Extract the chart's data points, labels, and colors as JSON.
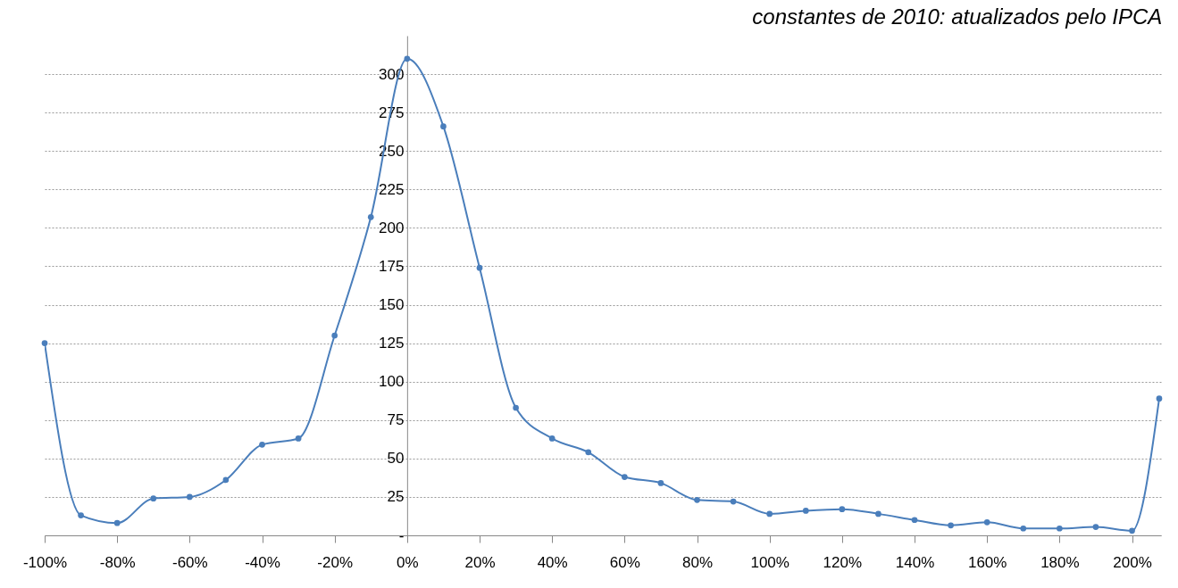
{
  "chart_data": {
    "type": "line",
    "title": "constantes de 2010: atualizados pelo IPCA",
    "x": [
      -100,
      -90,
      -80,
      -70,
      -60,
      -50,
      -40,
      -30,
      -20,
      -10,
      0,
      10,
      20,
      30,
      40,
      50,
      60,
      70,
      80,
      90,
      100,
      110,
      120,
      130,
      140,
      150,
      160,
      170,
      180,
      190,
      200,
      207.5
    ],
    "series": [
      {
        "color": "#4a7ebb",
        "values": [
          125,
          13,
          8,
          24,
          25,
          36,
          59,
          63,
          130,
          207,
          310,
          266,
          174,
          83,
          63,
          54,
          38,
          34,
          23,
          22,
          14,
          16,
          17,
          14,
          10,
          6.5,
          8.5,
          4.5,
          4.5,
          5.5,
          3,
          89
        ]
      }
    ],
    "xlim": [
      -100,
      208
    ],
    "xticks": [
      {
        "value": -100,
        "label": "-100%"
      },
      {
        "value": -80,
        "label": "-80%"
      },
      {
        "value": -60,
        "label": "-60%"
      },
      {
        "value": -40,
        "label": "-40%"
      },
      {
        "value": -20,
        "label": "-20%"
      },
      {
        "value": 0,
        "label": "0%"
      },
      {
        "value": 20,
        "label": "20%"
      },
      {
        "value": 40,
        "label": "40%"
      },
      {
        "value": 60,
        "label": "60%"
      },
      {
        "value": 80,
        "label": "80%"
      },
      {
        "value": 100,
        "label": "100%"
      },
      {
        "value": 120,
        "label": "120%"
      },
      {
        "value": 140,
        "label": "140%"
      },
      {
        "value": 160,
        "label": "160%"
      },
      {
        "value": 180,
        "label": "180%"
      },
      {
        "value": 200,
        "label": "200%"
      }
    ],
    "ylim": [
      0,
      325
    ],
    "yticks": [
      {
        "value": 0,
        "label": "-"
      },
      25,
      50,
      75,
      100,
      125,
      150,
      175,
      200,
      225,
      250,
      275,
      300
    ],
    "grid": "y",
    "marker": "circle",
    "line_style": "solid"
  }
}
